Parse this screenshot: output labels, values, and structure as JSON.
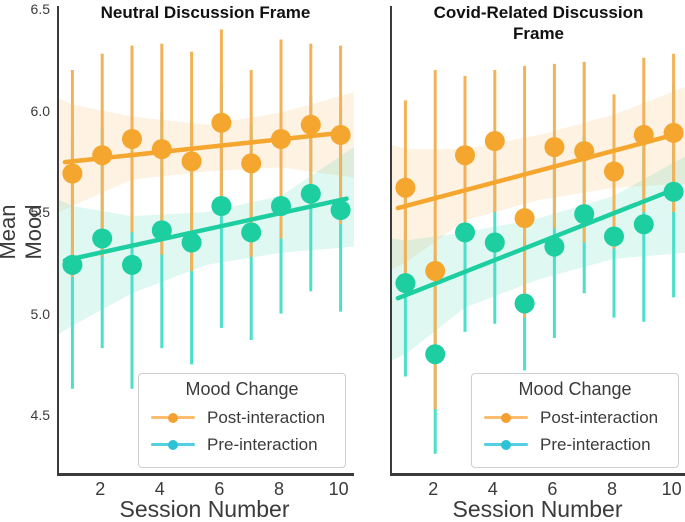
{
  "y_axis": {
    "label": "Mean Mood",
    "ticks": [
      {
        "label": "6.5",
        "value": 6.5
      },
      {
        "label": "6.0",
        "value": 6.0
      },
      {
        "label": "5.5",
        "value": 5.5
      },
      {
        "label": "5.0",
        "value": 5.0
      },
      {
        "label": "4.5",
        "value": 4.5
      }
    ]
  },
  "x_axis": {
    "label": "Session Number",
    "ticks": [
      {
        "label": "2",
        "value": 2
      },
      {
        "label": "4",
        "value": 4
      },
      {
        "label": "6",
        "value": 6
      },
      {
        "label": "8",
        "value": 8
      },
      {
        "label": "10",
        "value": 10
      }
    ]
  },
  "legend": {
    "title": "Mood Change",
    "entries": [
      {
        "label": "Post-interaction",
        "line_color": "#FBBC6E",
        "dot_color": "#F5A033"
      },
      {
        "label": "Pre-interaction",
        "line_color": "#52CFE0",
        "dot_color": "#2FC2D6"
      }
    ]
  },
  "colors": {
    "post": "#F5A62F",
    "post_errbar": "#F2B25A",
    "post_band": "rgba(246,166,47,0.14)",
    "pre": "#1DCEA1",
    "pre_errbar": "#4CDFC9",
    "pre_band": "rgba(29,206,161,0.14)",
    "spine": "#3b3b3b",
    "text": "#3b3b3b"
  },
  "chart_data": [
    {
      "type": "scatter",
      "title": "Neutral Discussion Frame",
      "title_lines": [
        "Neutral Discussion Frame"
      ],
      "xlabel": "Session Number",
      "ylabel": "Mean Mood",
      "xlim": [
        0.55,
        10.45
      ],
      "ylim": [
        4.215,
        6.515
      ],
      "x": [
        1,
        2,
        3,
        4,
        5,
        6,
        7,
        8,
        9,
        10
      ],
      "series": [
        {
          "name": "Post-interaction",
          "values": [
            5.69,
            5.78,
            5.86,
            5.81,
            5.75,
            5.94,
            5.74,
            5.86,
            5.93,
            5.88
          ],
          "err_low": [
            5.18,
            5.28,
            5.4,
            5.29,
            5.21,
            5.48,
            5.28,
            5.37,
            5.53,
            5.44
          ],
          "err_high": [
            6.2,
            6.28,
            6.32,
            6.33,
            6.29,
            6.4,
            6.2,
            6.35,
            6.33,
            6.32
          ],
          "trend": {
            "x1": 0.75,
            "y1": 5.746,
            "x2": 10.2,
            "y2": 5.893
          },
          "band": {
            "x": [
              0.55,
              1,
              3,
              5.5,
              8,
              10.45
            ],
            "top": [
              6.06,
              6.03,
              5.97,
              5.93,
              5.99,
              6.09
            ],
            "bottom": [
              5.5,
              5.53,
              5.66,
              5.7,
              5.72,
              5.67
            ]
          }
        },
        {
          "name": "Pre-interaction",
          "values": [
            5.24,
            5.37,
            5.24,
            5.41,
            5.35,
            5.53,
            5.4,
            5.53,
            5.59,
            5.51
          ],
          "err_low": [
            4.63,
            4.83,
            4.63,
            4.83,
            4.75,
            4.93,
            4.87,
            5.0,
            5.11,
            5.01
          ],
          "err_high": [
            5.85,
            5.91,
            5.85,
            5.99,
            5.95,
            6.13,
            5.93,
            6.06,
            6.07,
            6.01
          ],
          "trend": {
            "x1": 0.75,
            "y1": 5.262,
            "x2": 10.2,
            "y2": 5.566
          },
          "band": {
            "x": [
              0.55,
              1,
              3,
              5.5,
              8,
              10.45
            ],
            "top": [
              5.56,
              5.53,
              5.48,
              5.5,
              5.58,
              5.82
            ],
            "bottom": [
              4.9,
              4.94,
              5.1,
              5.24,
              5.3,
              5.33
            ]
          }
        }
      ]
    },
    {
      "type": "scatter",
      "title": "Covid-Related Discussion Frame",
      "title_lines": [
        "Covid-Related Discussion",
        "Frame"
      ],
      "xlabel": "Session Number",
      "ylabel": "Mean Mood",
      "xlim": [
        0.55,
        10.45
      ],
      "ylim": [
        4.215,
        6.515
      ],
      "x": [
        1,
        2,
        3,
        4,
        5,
        6,
        7,
        8,
        9,
        10
      ],
      "series": [
        {
          "name": "Post-interaction",
          "values": [
            5.62,
            5.21,
            5.78,
            5.85,
            5.47,
            5.82,
            5.8,
            5.7,
            5.88,
            5.89
          ],
          "err_low": [
            5.18,
            4.53,
            5.39,
            5.5,
            4.98,
            5.42,
            5.35,
            5.32,
            5.5,
            5.5
          ],
          "err_high": [
            6.05,
            6.2,
            6.17,
            6.2,
            6.22,
            6.23,
            6.24,
            6.08,
            6.26,
            6.28
          ],
          "trend": {
            "x1": 0.75,
            "y1": 5.52,
            "x2": 10.2,
            "y2": 5.888
          },
          "band": {
            "x": [
              0.55,
              1,
              3,
              5.5,
              8,
              10.45
            ],
            "top": [
              5.83,
              5.81,
              5.81,
              5.88,
              5.98,
              6.12
            ],
            "bottom": [
              5.22,
              5.25,
              5.46,
              5.56,
              5.62,
              5.64
            ]
          }
        },
        {
          "name": "Pre-interaction",
          "values": [
            5.15,
            4.8,
            5.4,
            5.35,
            5.05,
            5.33,
            5.49,
            5.38,
            5.44,
            5.6
          ],
          "err_low": [
            4.69,
            4.31,
            4.91,
            4.95,
            4.72,
            4.88,
            5.1,
            4.98,
            4.96,
            5.08
          ],
          "err_high": [
            5.61,
            5.29,
            5.89,
            5.75,
            5.38,
            5.78,
            5.88,
            5.78,
            5.92,
            6.12
          ],
          "trend": {
            "x1": 0.75,
            "y1": 5.076,
            "x2": 10.2,
            "y2": 5.622
          },
          "band": {
            "x": [
              0.55,
              1,
              3,
              5.5,
              8,
              10.45
            ],
            "top": [
              5.37,
              5.36,
              5.4,
              5.47,
              5.58,
              5.78
            ],
            "bottom": [
              4.77,
              4.8,
              5.03,
              5.17,
              5.27,
              5.3
            ]
          }
        }
      ]
    }
  ]
}
